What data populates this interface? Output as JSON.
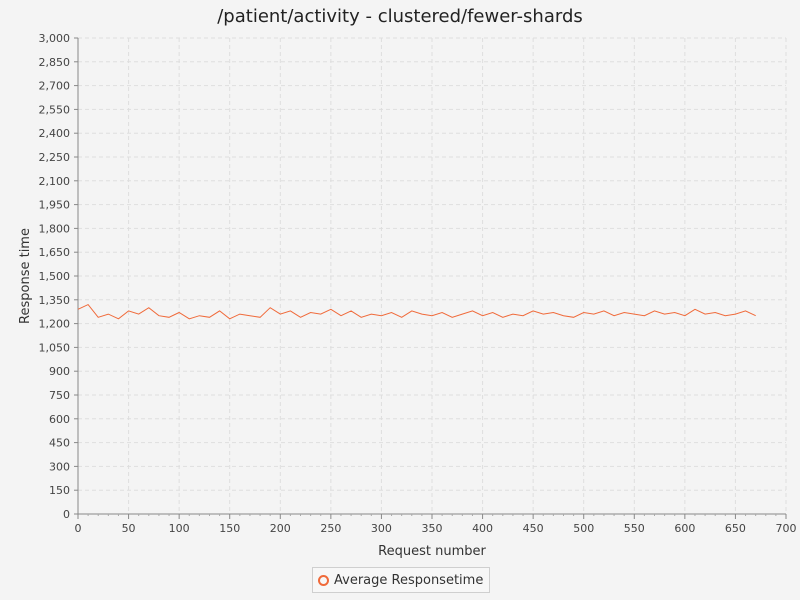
{
  "chart_data": {
    "type": "line",
    "title": "/patient/activity - clustered/fewer-shards",
    "xlabel": "Request number",
    "ylabel": "Response time",
    "xlim": [
      0,
      700
    ],
    "ylim": [
      0,
      3000
    ],
    "x_ticks": [
      0,
      50,
      100,
      150,
      200,
      250,
      300,
      350,
      400,
      450,
      500,
      550,
      600,
      650,
      700
    ],
    "x_tick_labels": [
      "0",
      "50",
      "100",
      "150",
      "200",
      "250",
      "300",
      "350",
      "400",
      "450",
      "500",
      "550",
      "600",
      "650",
      "700"
    ],
    "y_ticks": [
      0,
      150,
      300,
      450,
      600,
      750,
      900,
      1050,
      1200,
      1350,
      1500,
      1650,
      1800,
      1950,
      2100,
      2250,
      2400,
      2550,
      2700,
      2850,
      3000
    ],
    "y_tick_labels": [
      "0",
      "150",
      "300",
      "450",
      "600",
      "750",
      "900",
      "1,050",
      "1,200",
      "1,350",
      "1,500",
      "1,650",
      "1,800",
      "1,950",
      "2,100",
      "2,250",
      "2,400",
      "2,550",
      "2,700",
      "2,850",
      "3,000"
    ],
    "grid": true,
    "legend_position": "bottom-center",
    "series": [
      {
        "name": "Average Responsetime",
        "color": "#f06a3a",
        "x": [
          0,
          10,
          20,
          30,
          40,
          50,
          60,
          70,
          80,
          90,
          100,
          110,
          120,
          130,
          140,
          150,
          160,
          170,
          180,
          190,
          200,
          210,
          220,
          230,
          240,
          250,
          260,
          270,
          280,
          290,
          300,
          310,
          320,
          330,
          340,
          350,
          360,
          370,
          380,
          390,
          400,
          410,
          420,
          430,
          440,
          450,
          460,
          470,
          480,
          490,
          500,
          510,
          520,
          530,
          540,
          550,
          560,
          570,
          580,
          590,
          600,
          610,
          620,
          630,
          640,
          650,
          660,
          670
        ],
        "y": [
          1290,
          1320,
          1240,
          1260,
          1230,
          1280,
          1260,
          1300,
          1250,
          1240,
          1270,
          1230,
          1250,
          1240,
          1280,
          1230,
          1260,
          1250,
          1240,
          1300,
          1260,
          1280,
          1240,
          1270,
          1260,
          1290,
          1250,
          1280,
          1240,
          1260,
          1250,
          1270,
          1240,
          1280,
          1260,
          1250,
          1270,
          1240,
          1260,
          1280,
          1250,
          1270,
          1240,
          1260,
          1250,
          1280,
          1260,
          1270,
          1250,
          1240,
          1270,
          1260,
          1280,
          1250,
          1270,
          1260,
          1250,
          1280,
          1260,
          1270,
          1250,
          1290,
          1260,
          1270,
          1250,
          1260,
          1280,
          1250
        ]
      }
    ]
  }
}
